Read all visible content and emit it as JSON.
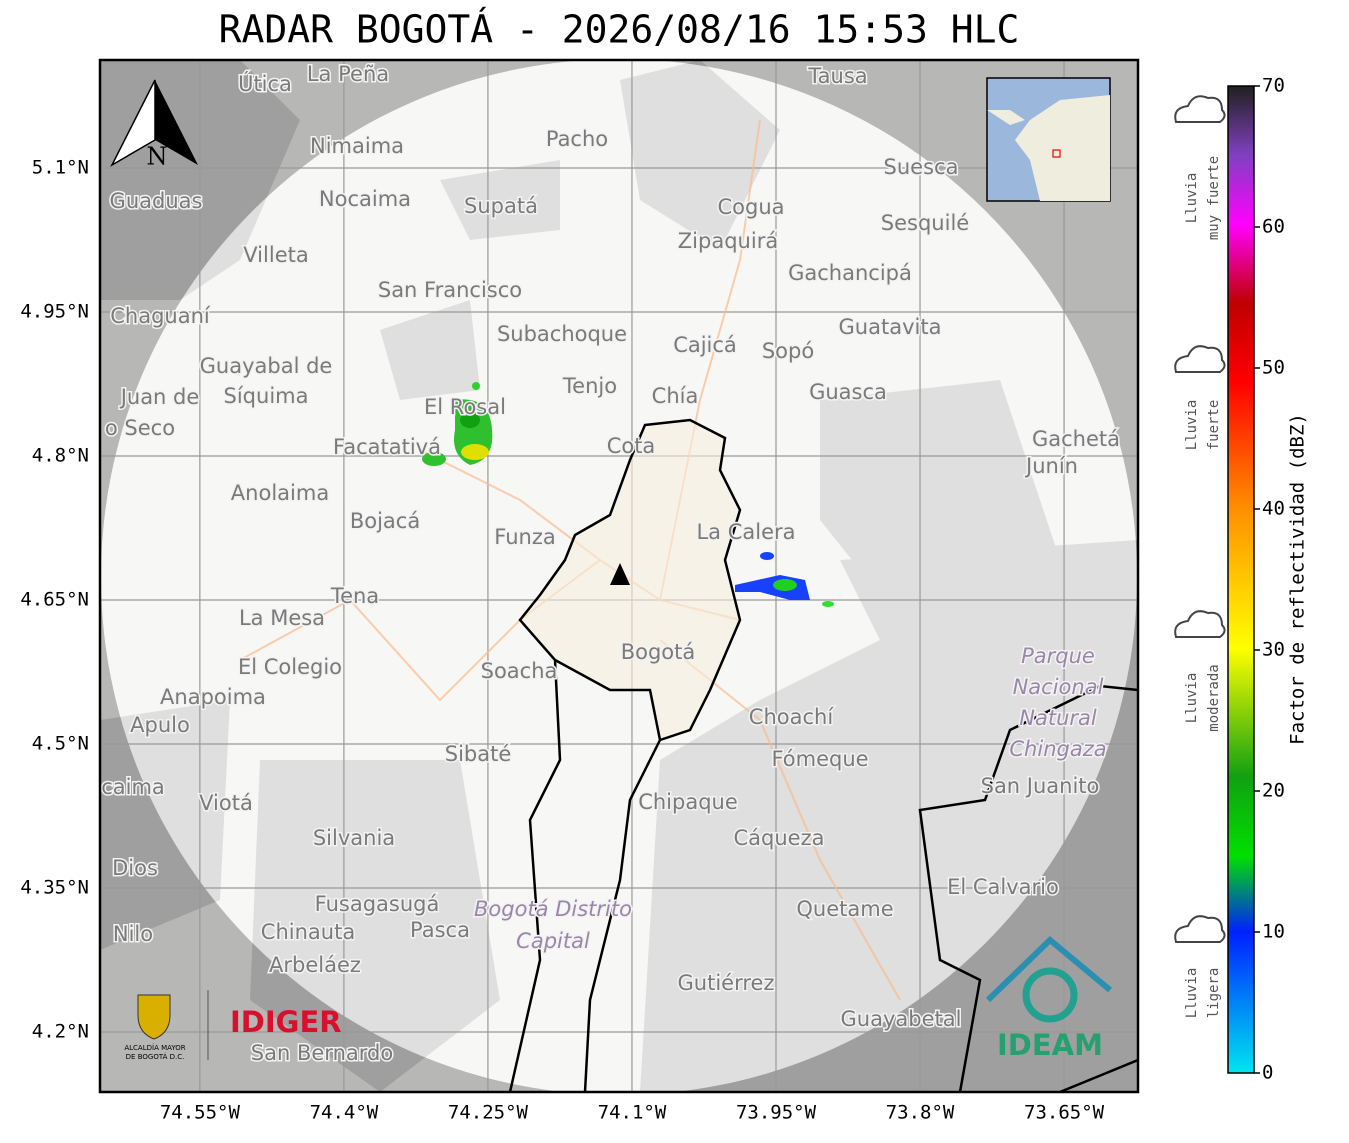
{
  "title": "RADAR BOGOTÁ - 2026/08/16 15:53 HLC",
  "map": {
    "north": "N",
    "lat_lim": [
      4.1375,
      5.2125
    ],
    "lon_lim": [
      -74.654,
      -73.573
    ],
    "lat_ticks": [
      {
        "value": 5.1,
        "label": "5.1°N"
      },
      {
        "value": 4.95,
        "label": "4.95°N"
      },
      {
        "value": 4.8,
        "label": "4.8°N"
      },
      {
        "value": 4.65,
        "label": "4.65°N"
      },
      {
        "value": 4.5,
        "label": "4.5°N"
      },
      {
        "value": 4.35,
        "label": "4.35°N"
      },
      {
        "value": 4.2,
        "label": "4.2°N"
      }
    ],
    "lon_ticks": [
      {
        "value": -74.55,
        "label": "74.55°W"
      },
      {
        "value": -74.4,
        "label": "74.4°W"
      },
      {
        "value": -74.25,
        "label": "74.25°W"
      },
      {
        "value": -74.1,
        "label": "74.1°W"
      },
      {
        "value": -73.95,
        "label": "73.95°W"
      },
      {
        "value": -73.8,
        "label": "73.8°W"
      },
      {
        "value": -73.65,
        "label": "73.65°W"
      }
    ],
    "places": [
      "La Peña",
      "Útica",
      "Tausa",
      "Pacho",
      "Nimaima",
      "Guaduas",
      "Nocaima",
      "Supatá",
      "Cogua",
      "Suesca",
      "Sesquilé",
      "Zipaquirá",
      "Villeta",
      "Gachancipá",
      "San Francisco",
      "Chaguaní",
      "Guatavita",
      "Subachoque",
      "Cajicá",
      "Sopó",
      "Guayabal de",
      "Síquima",
      "Juan de",
      "o Seco",
      "Tenjo",
      "Chía",
      "Guasca",
      "El Rosal",
      "Cota",
      "Facatativá",
      "Gachetá",
      "Junín",
      "Anolaima",
      "Bojacá",
      "Funza",
      "La Calera",
      "Tena",
      "La Mesa",
      "Bogotá",
      "Soacha",
      "El Colegio",
      "Anapoima",
      "Apulo",
      "Choachí",
      "Sibaté",
      "Fómeque",
      "San Juanito",
      "Viotá",
      "caima",
      "Chipaque",
      "Silvania",
      "Cáqueza",
      "Dios",
      "El Calvario",
      "Fusagasugá",
      "Quetame",
      "Nilo",
      "Chinauta",
      "Pasca",
      "Arbeláez",
      "Gutiérrez",
      "Guayabetal",
      "San Bernardo"
    ],
    "places_italic": [
      "Parque",
      "Nacional",
      "Natural",
      "Chingaza",
      "Bogotá Distrito",
      "Capital"
    ]
  },
  "colorbar": {
    "label": "Factor de reflectividad (dBZ)",
    "lim": [
      0,
      70
    ],
    "ticks": [
      0,
      10,
      20,
      30,
      40,
      50,
      60,
      70
    ]
  },
  "rain_levels": [
    [
      "Lluvia",
      "muy fuerte"
    ],
    [
      "Lluvia",
      "fuerte"
    ],
    [
      "Lluvia",
      "moderada"
    ],
    [
      "Lluvia",
      "ligera"
    ]
  ],
  "logos": {
    "alcaldia": [
      "ALCALDÍA MAYOR",
      "DE BOGOTÁ D.C."
    ],
    "idiger": "IDIGER",
    "ideam": "IDEAM"
  }
}
